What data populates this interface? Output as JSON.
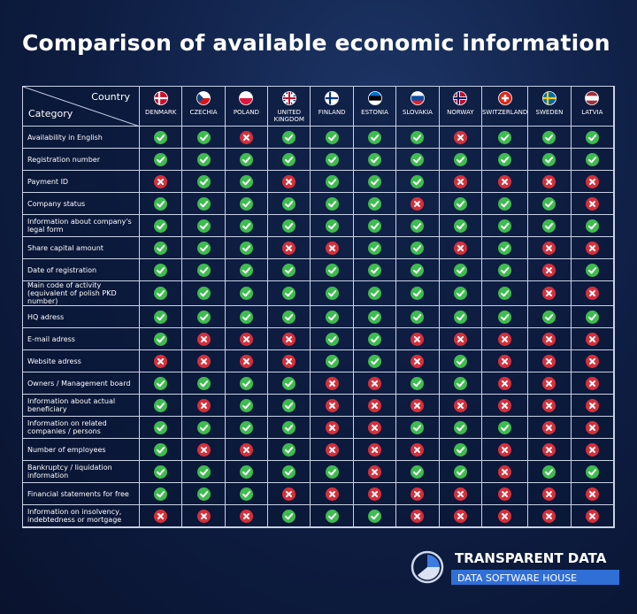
{
  "title": "Comparison of available economic information",
  "header": {
    "country_label": "Country",
    "category_label": "Category"
  },
  "countries": [
    "DENMARK",
    "CZECHIA",
    "POLAND",
    "UNITED KINGDOM",
    "FINLAND",
    "ESTONIA",
    "SLOVAKIA",
    "NORWAY",
    "SWITZERLAND",
    "SWEDEN",
    "LATVIA"
  ],
  "rows": [
    {
      "category": "Availability in English",
      "values": [
        true,
        true,
        false,
        true,
        true,
        true,
        true,
        false,
        true,
        true,
        true
      ]
    },
    {
      "category": "Registration number",
      "values": [
        true,
        true,
        true,
        true,
        true,
        true,
        true,
        true,
        true,
        true,
        true
      ]
    },
    {
      "category": "Payment ID",
      "values": [
        false,
        true,
        true,
        false,
        true,
        true,
        true,
        false,
        false,
        false,
        false
      ]
    },
    {
      "category": "Company status",
      "values": [
        true,
        true,
        true,
        true,
        true,
        true,
        false,
        true,
        true,
        true,
        false
      ]
    },
    {
      "category": "Information about company's legal form",
      "values": [
        true,
        true,
        true,
        true,
        true,
        true,
        true,
        true,
        true,
        true,
        true
      ]
    },
    {
      "category": "Share capital amount",
      "values": [
        true,
        true,
        true,
        false,
        false,
        true,
        true,
        false,
        true,
        false,
        false
      ]
    },
    {
      "category": "Date of registration",
      "values": [
        true,
        true,
        true,
        true,
        true,
        true,
        true,
        true,
        true,
        false,
        true
      ]
    },
    {
      "category": "Main code of activity (equivalent of polish PKD number)",
      "values": [
        true,
        true,
        true,
        true,
        true,
        true,
        true,
        true,
        true,
        false,
        false
      ]
    },
    {
      "category": "HQ adress",
      "values": [
        true,
        true,
        true,
        true,
        true,
        true,
        true,
        true,
        true,
        true,
        true
      ]
    },
    {
      "category": "E-mail adress",
      "values": [
        true,
        false,
        false,
        false,
        true,
        true,
        false,
        false,
        false,
        false,
        false
      ]
    },
    {
      "category": "Website adress",
      "values": [
        false,
        false,
        false,
        false,
        true,
        true,
        false,
        true,
        false,
        false,
        false
      ]
    },
    {
      "category": "Owners / Management board",
      "values": [
        true,
        true,
        true,
        true,
        false,
        false,
        true,
        true,
        false,
        false,
        false
      ]
    },
    {
      "category": "Information about actual beneficiary",
      "values": [
        true,
        false,
        true,
        true,
        false,
        false,
        false,
        false,
        false,
        false,
        false
      ]
    },
    {
      "category": "Information on related companies / persons",
      "values": [
        true,
        true,
        true,
        true,
        false,
        false,
        true,
        true,
        true,
        false,
        false
      ]
    },
    {
      "category": "Number of employees",
      "values": [
        true,
        false,
        false,
        true,
        false,
        false,
        false,
        true,
        false,
        false,
        false
      ]
    },
    {
      "category": "Bankruptcy / liquidation information",
      "values": [
        true,
        true,
        true,
        true,
        true,
        false,
        true,
        true,
        false,
        true,
        true
      ]
    },
    {
      "category": "Financial statements for free",
      "values": [
        true,
        true,
        true,
        false,
        false,
        false,
        false,
        false,
        false,
        false,
        false
      ]
    },
    {
      "category": "Information on insolvency, indebtedness or mortgage",
      "values": [
        false,
        false,
        false,
        true,
        true,
        true,
        false,
        false,
        false,
        false,
        false
      ]
    }
  ],
  "logo": {
    "name": "TRANSPARENT DATA",
    "tagline": "DATA SOFTWARE HOUSE"
  }
}
